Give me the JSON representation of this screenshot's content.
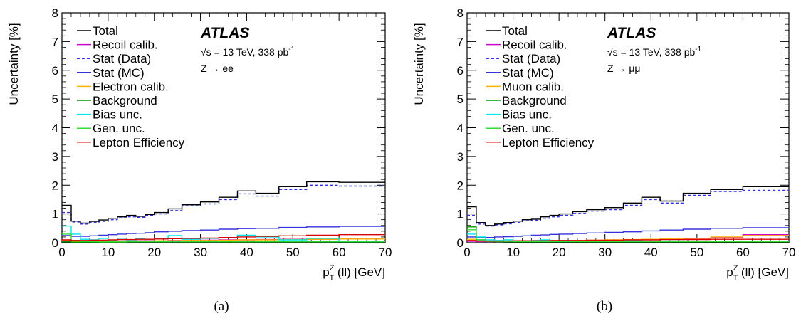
{
  "chart_data": [
    {
      "type": "line",
      "caption": "(a)",
      "ylabel": "Uncertainty [%]",
      "xlabel_main": "p",
      "xlabel_sub": "T",
      "xlabel_sup": "Z",
      "xlabel_rest": " (ll) [GeV]",
      "xlim": [
        0,
        70
      ],
      "ylim": [
        0,
        8
      ],
      "x_ticks": [
        0,
        10,
        20,
        30,
        40,
        50,
        60,
        70
      ],
      "y_ticks": [
        0,
        1,
        2,
        3,
        4,
        5,
        6,
        7,
        8
      ],
      "brand": "ATLAS",
      "energy_text": "√s = 13 TeV, 338 pb",
      "energy_sup": "-1",
      "channel": "Z → ee",
      "bin_edges": [
        0,
        2,
        4,
        6,
        8,
        10,
        12,
        14,
        16,
        18,
        20,
        23,
        26,
        30,
        34,
        38,
        42,
        47,
        53,
        60,
        70
      ],
      "series": [
        {
          "name": "Total",
          "color": "#000000",
          "dash": false,
          "values": [
            1.3,
            0.75,
            0.68,
            0.74,
            0.79,
            0.85,
            0.9,
            0.95,
            0.92,
            0.98,
            1.05,
            1.18,
            1.32,
            1.42,
            1.58,
            1.8,
            1.72,
            1.95,
            2.12,
            2.1
          ]
        },
        {
          "name": "Recoil calib.",
          "color": "#cc00cc",
          "dash": false,
          "values": [
            0.05,
            0.04,
            0.04,
            0.05,
            0.05,
            0.06,
            0.06,
            0.06,
            0.07,
            0.07,
            0.07,
            0.08,
            0.08,
            0.09,
            0.1,
            0.1,
            0.11,
            0.12,
            0.12,
            0.13
          ]
        },
        {
          "name": "Stat (Data)",
          "color": "#3333ee",
          "dash": true,
          "values": [
            1.05,
            0.72,
            0.65,
            0.7,
            0.74,
            0.8,
            0.86,
            0.9,
            0.88,
            0.95,
            1.0,
            1.12,
            1.28,
            1.35,
            1.5,
            1.7,
            1.62,
            1.85,
            2.0,
            1.97
          ]
        },
        {
          "name": "Stat (MC)",
          "color": "#3333dd",
          "dash": false,
          "values": [
            0.25,
            0.22,
            0.22,
            0.24,
            0.26,
            0.28,
            0.3,
            0.32,
            0.33,
            0.35,
            0.38,
            0.4,
            0.42,
            0.44,
            0.47,
            0.49,
            0.5,
            0.53,
            0.55,
            0.57
          ]
        },
        {
          "name": "Electron calib.",
          "color": "#ffb300",
          "dash": false,
          "values": [
            0.08,
            0.05,
            0.04,
            0.04,
            0.05,
            0.05,
            0.05,
            0.06,
            0.06,
            0.06,
            0.07,
            0.07,
            0.08,
            0.08,
            0.09,
            0.1,
            0.1,
            0.11,
            0.12,
            0.13
          ]
        },
        {
          "name": "Background",
          "color": "#009900",
          "dash": false,
          "values": [
            0.03,
            0.02,
            0.02,
            0.02,
            0.02,
            0.02,
            0.02,
            0.03,
            0.03,
            0.03,
            0.03,
            0.03,
            0.03,
            0.04,
            0.04,
            0.04,
            0.04,
            0.05,
            0.05,
            0.05
          ]
        },
        {
          "name": "Bias unc.",
          "color": "#00e5ee",
          "dash": false,
          "values": [
            0.58,
            0.3,
            0.12,
            0.1,
            0.15,
            0.08,
            0.12,
            0.1,
            0.14,
            0.12,
            0.14,
            0.25,
            0.12,
            0.15,
            0.18,
            0.26,
            0.2,
            0.1,
            0.15,
            0.05
          ]
        },
        {
          "name": "Gen. unc.",
          "color": "#33dd33",
          "dash": false,
          "values": [
            0.3,
            0.08,
            0.05,
            0.04,
            0.03,
            0.03,
            0.03,
            0.03,
            0.03,
            0.03,
            0.03,
            0.03,
            0.03,
            0.03,
            0.03,
            0.03,
            0.03,
            0.03,
            0.03,
            0.03
          ]
        },
        {
          "name": "Lepton Efficiency",
          "color": "#dd0000",
          "dash": false,
          "values": [
            0.1,
            0.08,
            0.08,
            0.09,
            0.09,
            0.1,
            0.11,
            0.11,
            0.12,
            0.12,
            0.13,
            0.14,
            0.15,
            0.16,
            0.18,
            0.2,
            0.22,
            0.24,
            0.26,
            0.28
          ]
        }
      ]
    },
    {
      "type": "line",
      "caption": "(b)",
      "ylabel": "Uncertainty [%]",
      "xlabel_main": "p",
      "xlabel_sub": "T",
      "xlabel_sup": "Z",
      "xlabel_rest": " (ll) [GeV]",
      "xlim": [
        0,
        70
      ],
      "ylim": [
        0,
        8
      ],
      "x_ticks": [
        0,
        10,
        20,
        30,
        40,
        50,
        60,
        70
      ],
      "y_ticks": [
        0,
        1,
        2,
        3,
        4,
        5,
        6,
        7,
        8
      ],
      "brand": "ATLAS",
      "energy_text": "√s = 13 TeV, 338 pb",
      "energy_sup": "-1",
      "channel": "Z → μμ",
      "bin_edges": [
        0,
        2,
        4,
        6,
        8,
        10,
        12,
        14,
        16,
        18,
        20,
        23,
        26,
        30,
        34,
        38,
        42,
        47,
        53,
        60,
        70
      ],
      "series": [
        {
          "name": "Total",
          "color": "#000000",
          "dash": false,
          "values": [
            1.25,
            0.7,
            0.6,
            0.65,
            0.7,
            0.75,
            0.8,
            0.82,
            0.9,
            0.95,
            1.0,
            1.08,
            1.15,
            1.22,
            1.38,
            1.58,
            1.45,
            1.72,
            1.85,
            1.95
          ]
        },
        {
          "name": "Recoil calib.",
          "color": "#cc00cc",
          "dash": false,
          "values": [
            0.05,
            0.04,
            0.04,
            0.05,
            0.05,
            0.05,
            0.06,
            0.06,
            0.06,
            0.07,
            0.07,
            0.08,
            0.08,
            0.09,
            0.1,
            0.11,
            0.12,
            0.14,
            0.18,
            0.28
          ]
        },
        {
          "name": "Stat (Data)",
          "color": "#3333ee",
          "dash": true,
          "values": [
            0.95,
            0.65,
            0.58,
            0.62,
            0.66,
            0.7,
            0.76,
            0.78,
            0.85,
            0.9,
            0.95,
            1.02,
            1.1,
            1.15,
            1.3,
            1.5,
            1.38,
            1.65,
            1.78,
            1.82
          ]
        },
        {
          "name": "Stat (MC)",
          "color": "#3333dd",
          "dash": false,
          "values": [
            0.2,
            0.18,
            0.18,
            0.2,
            0.21,
            0.22,
            0.24,
            0.26,
            0.27,
            0.29,
            0.3,
            0.32,
            0.34,
            0.36,
            0.38,
            0.41,
            0.44,
            0.47,
            0.5,
            0.52
          ]
        },
        {
          "name": "Muon calib.",
          "color": "#ffb300",
          "dash": false,
          "values": [
            0.12,
            0.06,
            0.05,
            0.05,
            0.05,
            0.06,
            0.06,
            0.06,
            0.07,
            0.07,
            0.07,
            0.08,
            0.09,
            0.1,
            0.11,
            0.12,
            0.13,
            0.15,
            0.2,
            0.25
          ]
        },
        {
          "name": "Background",
          "color": "#009900",
          "dash": false,
          "values": [
            0.55,
            0.1,
            0.05,
            0.04,
            0.03,
            0.03,
            0.03,
            0.03,
            0.03,
            0.03,
            0.03,
            0.03,
            0.03,
            0.03,
            0.03,
            0.03,
            0.03,
            0.03,
            0.03,
            0.03
          ]
        },
        {
          "name": "Bias unc.",
          "color": "#00e5ee",
          "dash": false,
          "values": [
            0.3,
            0.2,
            0.1,
            0.08,
            0.1,
            0.07,
            0.06,
            0.08,
            0.1,
            0.07,
            0.08,
            0.06,
            0.07,
            0.06,
            0.07,
            0.05,
            0.06,
            0.05,
            0.05,
            0.05
          ]
        },
        {
          "name": "Gen. unc.",
          "color": "#33dd33",
          "dash": false,
          "values": [
            0.45,
            0.1,
            0.06,
            0.05,
            0.04,
            0.04,
            0.04,
            0.04,
            0.04,
            0.04,
            0.04,
            0.04,
            0.04,
            0.04,
            0.04,
            0.04,
            0.04,
            0.04,
            0.04,
            0.04
          ]
        },
        {
          "name": "Lepton Efficiency",
          "color": "#dd0000",
          "dash": false,
          "values": [
            0.08,
            0.06,
            0.06,
            0.06,
            0.06,
            0.07,
            0.07,
            0.07,
            0.07,
            0.08,
            0.08,
            0.08,
            0.09,
            0.09,
            0.1,
            0.1,
            0.11,
            0.11,
            0.12,
            0.12
          ]
        }
      ]
    }
  ]
}
